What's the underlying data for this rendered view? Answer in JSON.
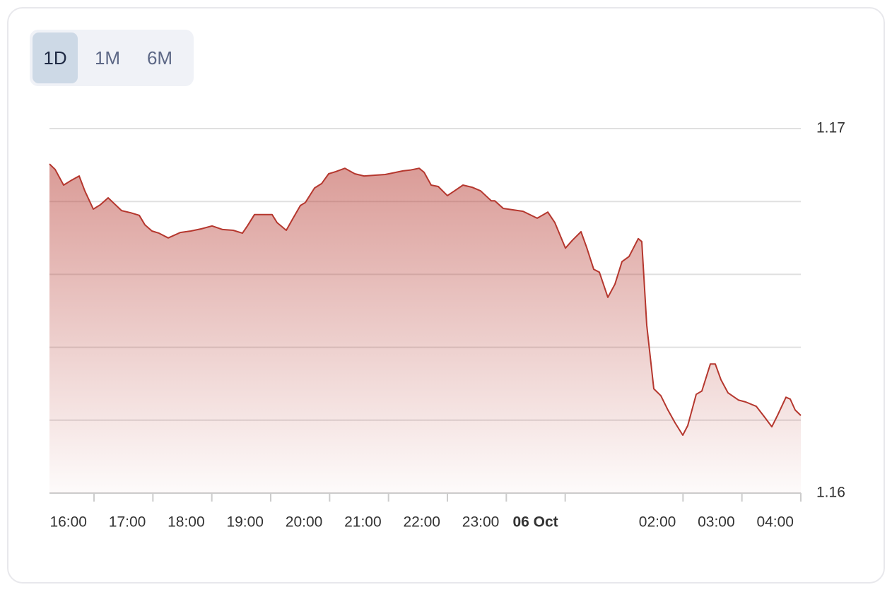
{
  "range_selector": {
    "options": [
      "1D",
      "1M",
      "6M"
    ],
    "selected_index": 0
  },
  "chart_data": {
    "type": "area",
    "color": "#b5372e",
    "x": [
      15.244,
      15.34,
      15.484,
      15.604,
      15.748,
      15.844,
      15.988,
      16.108,
      16.24,
      16.324,
      16.468,
      16.624,
      16.768,
      16.864,
      16.984,
      17.104,
      17.26,
      17.464,
      17.644,
      17.824,
      18.004,
      18.184,
      18.364,
      18.52,
      18.604,
      18.724,
      19.024,
      19.108,
      19.264,
      19.372,
      19.504,
      19.588,
      19.744,
      19.864,
      19.984,
      20.104,
      20.26,
      20.428,
      20.584,
      20.944,
      21.064,
      21.244,
      21.364,
      21.52,
      21.604,
      21.724,
      21.844,
      22.0,
      22.12,
      22.264,
      22.42,
      22.564,
      22.744,
      22.804,
      22.948,
      23.284,
      23.524,
      23.704,
      23.824,
      24.004,
      24.124,
      24.268,
      24.364,
      24.484,
      24.58,
      24.724,
      24.844,
      24.964,
      25.084,
      25.24,
      25.3,
      25.384,
      25.504,
      25.624,
      25.744,
      25.864,
      25.996,
      26.08,
      26.224,
      26.32,
      26.464,
      26.548,
      26.644,
      26.764,
      26.944,
      27.064,
      27.244,
      27.364,
      27.508,
      27.604,
      27.748,
      27.82,
      27.904,
      28.0
    ],
    "values": [
      1.16903,
      1.16888,
      1.16845,
      1.16857,
      1.1687,
      1.16829,
      1.16779,
      1.16791,
      1.1681,
      1.16797,
      1.16775,
      1.16769,
      1.16762,
      1.16736,
      1.16719,
      1.16713,
      1.167,
      1.16715,
      1.16719,
      1.16725,
      1.16733,
      1.16723,
      1.16721,
      1.16713,
      1.16733,
      1.16764,
      1.16764,
      1.16742,
      1.16721,
      1.16752,
      1.16789,
      1.16797,
      1.16837,
      1.16849,
      1.16876,
      1.16882,
      1.16891,
      1.16876,
      1.1687,
      1.16874,
      1.16878,
      1.16884,
      1.16886,
      1.16891,
      1.1688,
      1.16845,
      1.16841,
      1.16816,
      1.16829,
      1.16845,
      1.16839,
      1.16829,
      1.16802,
      1.16802,
      1.16781,
      1.16773,
      1.16754,
      1.16771,
      1.16742,
      1.16672,
      1.16694,
      1.16717,
      1.16674,
      1.16614,
      1.16606,
      1.16537,
      1.16573,
      1.16635,
      1.16649,
      1.16698,
      1.1669,
      1.16461,
      1.16286,
      1.16267,
      1.16228,
      1.16193,
      1.16159,
      1.16185,
      1.16271,
      1.1628,
      1.16354,
      1.16354,
      1.16311,
      1.16275,
      1.16255,
      1.1625,
      1.16238,
      1.16213,
      1.16182,
      1.16213,
      1.16263,
      1.16258,
      1.16228,
      1.16213
    ],
    "xlim": [
      15.244,
      28
    ],
    "xticks": [
      {
        "value": 16,
        "label": "16:00"
      },
      {
        "value": 17,
        "label": "17:00"
      },
      {
        "value": 18,
        "label": "18:00"
      },
      {
        "value": 19,
        "label": "19:00"
      },
      {
        "value": 20,
        "label": "20:00"
      },
      {
        "value": 21,
        "label": "21:00"
      },
      {
        "value": 22,
        "label": "22:00"
      },
      {
        "value": 23,
        "label": "23:00"
      },
      {
        "value": 24,
        "label": "06 Oct"
      },
      {
        "value": 25,
        "label": null
      },
      {
        "value": 26,
        "label": "02:00"
      },
      {
        "value": 27,
        "label": "03:00"
      },
      {
        "value": 28,
        "label": "04:00"
      }
    ],
    "ylim": [
      1.16,
      1.17
    ],
    "yticks": [
      1.16,
      {
        "value": 1.162,
        "label": null
      },
      {
        "value": 1.164,
        "label": null
      },
      {
        "value": 1.166,
        "label": null
      },
      {
        "value": 1.168,
        "label": null
      },
      1.17
    ],
    "grid": true
  }
}
